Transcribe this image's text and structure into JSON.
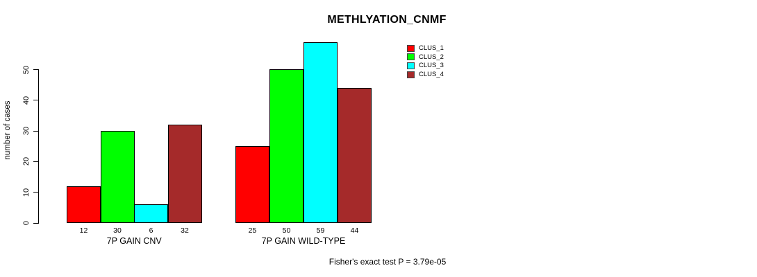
{
  "chart_data": {
    "type": "bar",
    "title": "METHLYATION_CNMF",
    "xlabel": "",
    "ylabel": "number of cases",
    "categories": [
      "7P GAIN CNV",
      "7P GAIN WILD-TYPE"
    ],
    "series": [
      {
        "name": "CLUS_1",
        "color": "#ff0000",
        "values": [
          12,
          25
        ]
      },
      {
        "name": "CLUS_2",
        "color": "#00ff00",
        "values": [
          30,
          50
        ]
      },
      {
        "name": "CLUS_3",
        "color": "#00ffff",
        "values": [
          6,
          59
        ]
      },
      {
        "name": "CLUS_4",
        "color": "#a52a2a",
        "values": [
          32,
          44
        ]
      }
    ],
    "y_ticks": [
      0,
      10,
      20,
      30,
      40,
      50
    ],
    "ylim": [
      0,
      59
    ],
    "bar_value_labels": true,
    "grid": false,
    "legend_position": "top-right",
    "annotation": "Fisher's exact test P = 3.79e-05"
  }
}
